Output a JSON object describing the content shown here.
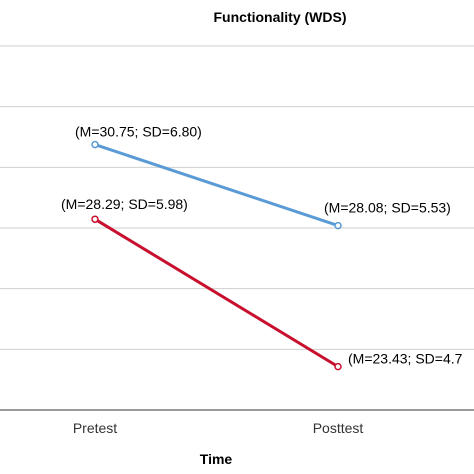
{
  "chart_data": {
    "type": "line",
    "title": "Functionality (WDS)",
    "xlabel": "Time",
    "ylabel": "",
    "categories": [
      "Pretest",
      "Posttest"
    ],
    "ylim": [
      22,
      34
    ],
    "grid": true,
    "series": [
      {
        "values": [
          30.75,
          28.08
        ],
        "color": "#5b9bd5",
        "labels": [
          "(M=30.75; SD=6.80)",
          "(M=28.08; SD=5.53)"
        ]
      },
      {
        "values": [
          28.29,
          23.43
        ],
        "color": "#c8102e",
        "labels": [
          "(M=28.29; SD=5.98)",
          "(M=23.43; SD=4.7"
        ]
      }
    ]
  }
}
